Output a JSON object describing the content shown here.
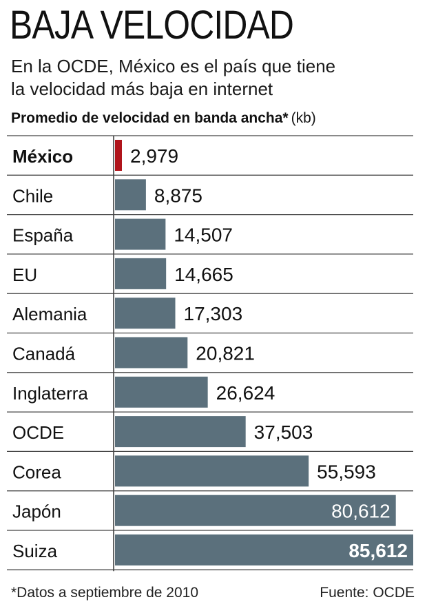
{
  "header": {
    "title": "BAJA VELOCIDAD",
    "subtitle_line1": "En la OCDE, México es el país que tiene",
    "subtitle_line2": "la velocidad más baja en internet",
    "measure": "Promedio de velocidad en banda ancha*",
    "unit": "(kb)"
  },
  "chart_data": {
    "type": "bar",
    "orientation": "horizontal",
    "title": "Promedio de velocidad en banda ancha*",
    "unit": "(kb)",
    "categories": [
      "México",
      "Chile",
      "España",
      "EU",
      "Alemania",
      "Canadá",
      "Inglaterra",
      "OCDE",
      "Corea",
      "Japón",
      "Suiza"
    ],
    "values": [
      2979,
      8875,
      14507,
      14665,
      17303,
      20821,
      26624,
      37503,
      55593,
      80612,
      85612
    ],
    "value_labels": [
      "2,979",
      "8,875",
      "14,507",
      "14,665",
      "17,303",
      "20,821",
      "26,624",
      "37,503",
      "55,593",
      "80,612",
      "85,612"
    ],
    "highlight": "México",
    "xlim": [
      0,
      85612
    ],
    "grid": false,
    "legend": "none",
    "colors": {
      "bar": "#5b707c",
      "highlight": "#b0141b",
      "rule": "#444444",
      "label_inside": "#ffffff",
      "label_outside": "#111111"
    }
  },
  "footer": {
    "footnote": "*Datos a septiembre de 2010",
    "source": "Fuente: OCDE"
  }
}
